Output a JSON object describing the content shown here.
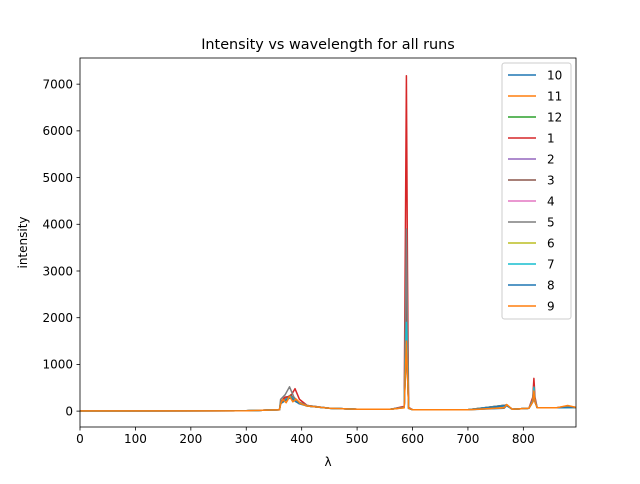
{
  "chart_data": {
    "type": "line",
    "title": "Intensity vs wavelength for all runs",
    "xlabel": "λ",
    "ylabel": "intensity",
    "xlim": [
      0,
      895
    ],
    "ylim": [
      -340,
      7560
    ],
    "x_ticks": [
      0,
      100,
      200,
      300,
      400,
      500,
      600,
      700,
      800
    ],
    "y_ticks": [
      0,
      1000,
      2000,
      3000,
      4000,
      5000,
      6000,
      7000
    ],
    "grid": false,
    "legend_position": "upper right",
    "series": [
      {
        "name": "10",
        "color": "#1f77b4",
        "x": [
          0,
          300,
          360,
          362,
          370,
          378,
          385,
          395,
          410,
          450,
          500,
          560,
          585,
          587,
          589,
          591,
          593,
          600,
          700,
          765,
          770,
          780,
          810,
          817,
          819,
          821,
          825,
          860,
          880,
          895
        ],
        "y": [
          5,
          10,
          30,
          180,
          260,
          330,
          240,
          160,
          110,
          60,
          40,
          40,
          80,
          800,
          1200,
          900,
          60,
          30,
          30,
          60,
          120,
          40,
          60,
          200,
          420,
          200,
          70,
          70,
          100,
          80
        ]
      },
      {
        "name": "11",
        "color": "#ff7f0e",
        "x": [
          0,
          300,
          360,
          362,
          368,
          374,
          380,
          388,
          396,
          410,
          450,
          500,
          560,
          585,
          587,
          589,
          591,
          593,
          600,
          700,
          765,
          770,
          780,
          810,
          817,
          819,
          821,
          825,
          860,
          880,
          895
        ],
        "y": [
          5,
          10,
          30,
          150,
          280,
          220,
          350,
          230,
          180,
          120,
          60,
          40,
          40,
          70,
          700,
          1300,
          800,
          60,
          30,
          30,
          70,
          140,
          40,
          60,
          200,
          400,
          200,
          70,
          70,
          110,
          80
        ]
      },
      {
        "name": "12",
        "color": "#2ca02c",
        "x": [
          0,
          300,
          360,
          362,
          372,
          380,
          390,
          410,
          450,
          500,
          560,
          585,
          587,
          589,
          591,
          593,
          600,
          700,
          770,
          780,
          810,
          817,
          819,
          821,
          825,
          860,
          895
        ],
        "y": [
          5,
          10,
          30,
          170,
          240,
          300,
          200,
          110,
          60,
          40,
          40,
          80,
          900,
          1400,
          900,
          60,
          30,
          30,
          130,
          40,
          60,
          210,
          450,
          210,
          70,
          70,
          80
        ]
      },
      {
        "name": "1",
        "color": "#d62728",
        "x": [
          0,
          300,
          360,
          362,
          370,
          380,
          388,
          396,
          410,
          450,
          500,
          560,
          585,
          587,
          589,
          591,
          593,
          600,
          700,
          770,
          780,
          810,
          817,
          819,
          821,
          825,
          860,
          895
        ],
        "y": [
          5,
          10,
          30,
          200,
          300,
          320,
          480,
          250,
          120,
          60,
          40,
          40,
          100,
          3500,
          7180,
          3000,
          80,
          30,
          30,
          130,
          40,
          60,
          300,
          700,
          300,
          70,
          70,
          80
        ]
      },
      {
        "name": "2",
        "color": "#9467bd",
        "x": [
          0,
          300,
          360,
          362,
          372,
          380,
          390,
          410,
          450,
          500,
          560,
          585,
          587,
          589,
          591,
          593,
          600,
          700,
          770,
          780,
          810,
          817,
          819,
          821,
          825,
          860,
          895
        ],
        "y": [
          5,
          10,
          30,
          160,
          250,
          310,
          210,
          110,
          60,
          40,
          40,
          80,
          1000,
          2000,
          1000,
          60,
          30,
          30,
          120,
          40,
          60,
          200,
          420,
          200,
          70,
          70,
          80
        ]
      },
      {
        "name": "3",
        "color": "#8c564b",
        "x": [
          0,
          300,
          360,
          362,
          372,
          380,
          390,
          410,
          450,
          500,
          560,
          585,
          587,
          589,
          591,
          593,
          600,
          700,
          770,
          780,
          810,
          817,
          819,
          821,
          825,
          860,
          895
        ],
        "y": [
          5,
          10,
          30,
          170,
          260,
          340,
          220,
          110,
          60,
          40,
          40,
          80,
          1200,
          2600,
          1200,
          60,
          30,
          30,
          120,
          40,
          60,
          200,
          430,
          200,
          70,
          70,
          80
        ]
      },
      {
        "name": "4",
        "color": "#e377c2",
        "x": [
          0,
          300,
          360,
          362,
          372,
          380,
          390,
          410,
          450,
          500,
          560,
          585,
          587,
          589,
          591,
          593,
          600,
          700,
          770,
          780,
          810,
          817,
          819,
          821,
          825,
          860,
          895
        ],
        "y": [
          5,
          10,
          30,
          160,
          250,
          300,
          200,
          110,
          60,
          40,
          40,
          80,
          900,
          1700,
          900,
          60,
          30,
          30,
          120,
          40,
          60,
          200,
          410,
          200,
          70,
          70,
          80
        ]
      },
      {
        "name": "5",
        "color": "#7f7f7f",
        "x": [
          0,
          300,
          360,
          362,
          370,
          378,
          386,
          394,
          410,
          450,
          500,
          560,
          585,
          587,
          589,
          591,
          593,
          600,
          700,
          770,
          780,
          810,
          817,
          819,
          821,
          825,
          860,
          895
        ],
        "y": [
          5,
          10,
          30,
          250,
          350,
          520,
          300,
          200,
          120,
          60,
          40,
          40,
          80,
          1800,
          3900,
          1800,
          60,
          30,
          30,
          130,
          40,
          60,
          250,
          520,
          250,
          70,
          70,
          80
        ]
      },
      {
        "name": "6",
        "color": "#bcbd22",
        "x": [
          0,
          300,
          360,
          362,
          372,
          380,
          390,
          410,
          450,
          500,
          560,
          585,
          587,
          589,
          591,
          593,
          600,
          700,
          770,
          780,
          810,
          817,
          819,
          821,
          825,
          860,
          895
        ],
        "y": [
          5,
          10,
          30,
          160,
          240,
          300,
          200,
          110,
          60,
          40,
          40,
          80,
          900,
          1600,
          900,
          60,
          30,
          30,
          120,
          40,
          60,
          200,
          400,
          200,
          70,
          70,
          80
        ]
      },
      {
        "name": "7",
        "color": "#17becf",
        "x": [
          0,
          300,
          360,
          362,
          372,
          380,
          390,
          410,
          450,
          500,
          560,
          585,
          587,
          589,
          591,
          593,
          600,
          700,
          770,
          780,
          810,
          817,
          819,
          821,
          825,
          860,
          895
        ],
        "y": [
          5,
          10,
          30,
          160,
          250,
          310,
          200,
          110,
          60,
          40,
          40,
          80,
          1000,
          1900,
          1000,
          60,
          30,
          30,
          120,
          40,
          60,
          220,
          500,
          220,
          70,
          70,
          80
        ]
      },
      {
        "name": "8",
        "color": "#1f77b4",
        "x": [
          0,
          300,
          360,
          362,
          372,
          380,
          390,
          410,
          450,
          500,
          560,
          585,
          587,
          589,
          591,
          593,
          600,
          700,
          770,
          780,
          810,
          817,
          819,
          821,
          825,
          860,
          895
        ],
        "y": [
          5,
          10,
          30,
          160,
          240,
          290,
          200,
          110,
          60,
          40,
          40,
          80,
          800,
          1500,
          800,
          60,
          30,
          30,
          120,
          40,
          60,
          200,
          400,
          200,
          70,
          70,
          80
        ]
      },
      {
        "name": "9",
        "color": "#ff7f0e",
        "x": [
          0,
          300,
          360,
          362,
          366,
          372,
          378,
          384,
          390,
          398,
          410,
          450,
          500,
          560,
          585,
          587,
          589,
          591,
          593,
          600,
          700,
          765,
          770,
          780,
          810,
          817,
          819,
          821,
          825,
          860,
          880,
          895
        ],
        "y": [
          5,
          10,
          30,
          150,
          250,
          180,
          320,
          200,
          260,
          160,
          110,
          60,
          40,
          40,
          70,
          800,
          1500,
          800,
          60,
          30,
          30,
          70,
          140,
          40,
          60,
          200,
          430,
          200,
          70,
          70,
          120,
          80
        ]
      }
    ]
  }
}
